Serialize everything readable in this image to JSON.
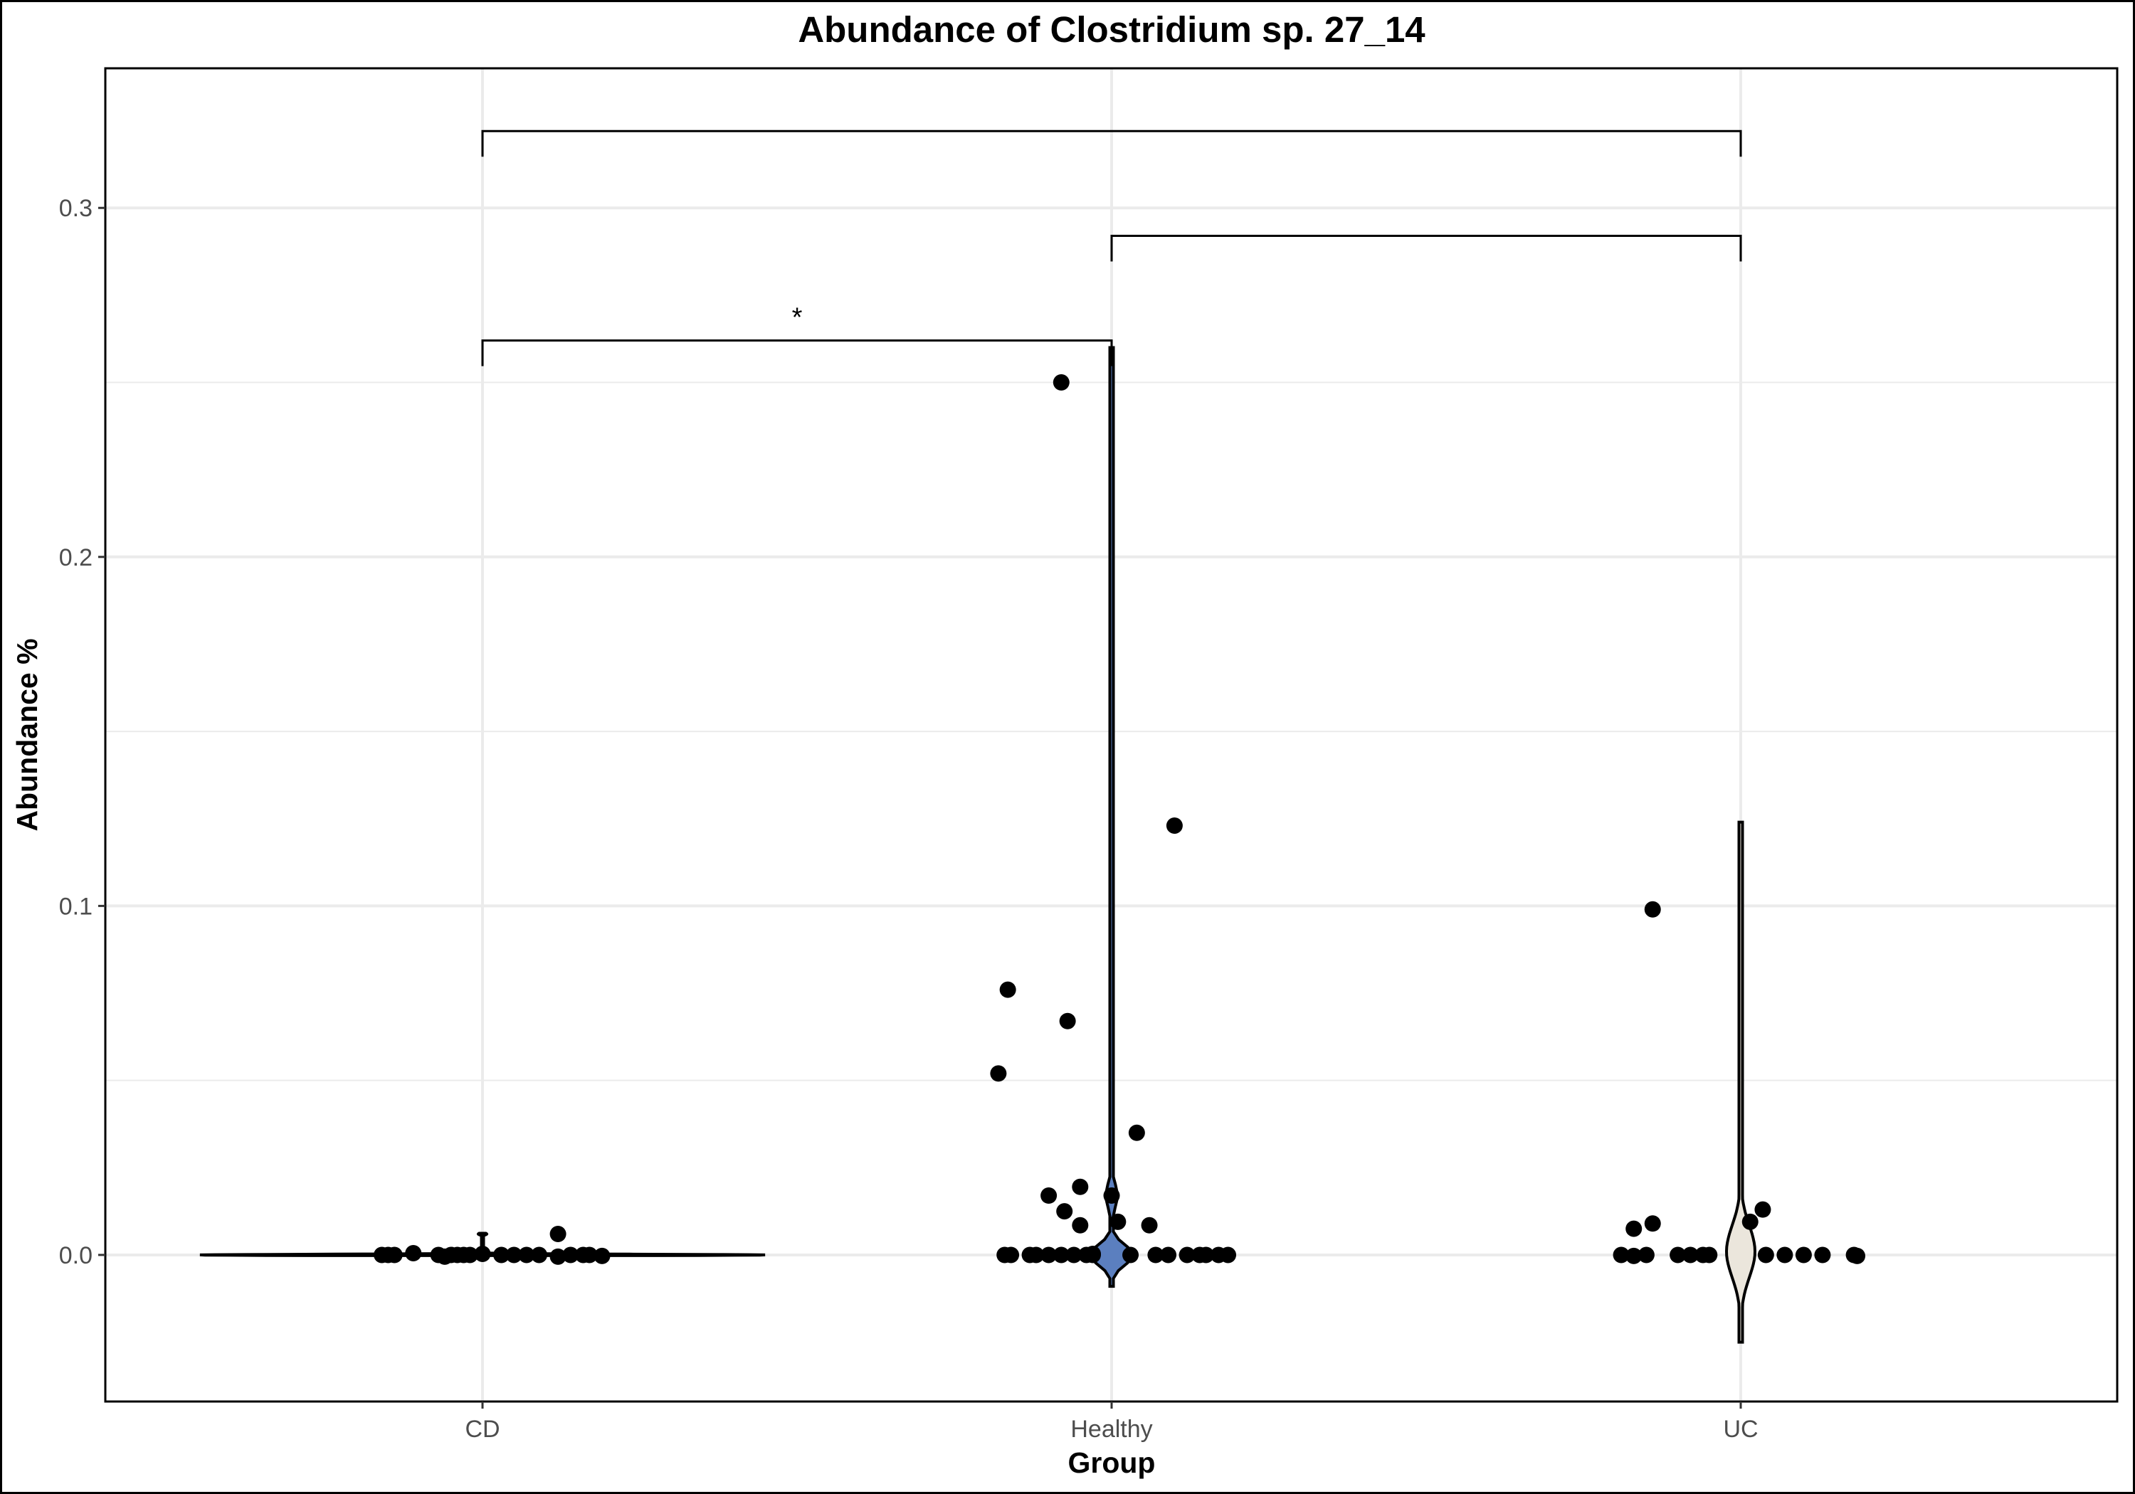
{
  "chart_data": {
    "type": "violin",
    "title": "Abundance of Clostridium sp. 27_14",
    "xlabel": "Group",
    "ylabel": "Abundance %",
    "categories": [
      "CD",
      "Healthy",
      "UC"
    ],
    "ylim": [
      -0.042,
      0.34
    ],
    "yticks": [
      0.0,
      0.1,
      0.2,
      0.3
    ],
    "ytick_labels": [
      "0.0",
      "0.1",
      "0.2",
      "0.3"
    ],
    "grid": true,
    "legend": "none",
    "colors": {
      "CD": "#ffffff",
      "Healthy": "#5b7fbf",
      "UC": "#ebe6dc"
    },
    "violin_range": {
      "CD": [
        -0.0002,
        0.0062
      ],
      "Healthy": [
        -0.009,
        0.26
      ],
      "UC": [
        -0.025,
        0.124
      ]
    },
    "points": [
      {
        "group": "CD",
        "x": -0.16,
        "y": 0.0
      },
      {
        "group": "CD",
        "x": -0.15,
        "y": 0.0
      },
      {
        "group": "CD",
        "x": -0.14,
        "y": 0.0
      },
      {
        "group": "CD",
        "x": -0.11,
        "y": 0.0005
      },
      {
        "group": "CD",
        "x": -0.07,
        "y": 0.0
      },
      {
        "group": "CD",
        "x": -0.06,
        "y": -0.0005
      },
      {
        "group": "CD",
        "x": -0.05,
        "y": 0.0
      },
      {
        "group": "CD",
        "x": -0.04,
        "y": 0.0
      },
      {
        "group": "CD",
        "x": -0.03,
        "y": 0.0
      },
      {
        "group": "CD",
        "x": -0.02,
        "y": 0.0
      },
      {
        "group": "CD",
        "x": 0.0,
        "y": 0.0003
      },
      {
        "group": "CD",
        "x": 0.03,
        "y": 0.0
      },
      {
        "group": "CD",
        "x": 0.05,
        "y": 0.0
      },
      {
        "group": "CD",
        "x": 0.07,
        "y": 0.0
      },
      {
        "group": "CD",
        "x": 0.09,
        "y": 0.0
      },
      {
        "group": "CD",
        "x": 0.12,
        "y": 0.006
      },
      {
        "group": "CD",
        "x": 0.12,
        "y": -0.0005
      },
      {
        "group": "CD",
        "x": 0.14,
        "y": 0.0
      },
      {
        "group": "CD",
        "x": 0.16,
        "y": 0.0
      },
      {
        "group": "CD",
        "x": 0.17,
        "y": 0.0
      },
      {
        "group": "CD",
        "x": 0.19,
        "y": -0.0003
      },
      {
        "group": "Healthy",
        "x": -0.18,
        "y": 0.052
      },
      {
        "group": "Healthy",
        "x": -0.165,
        "y": 0.076
      },
      {
        "group": "Healthy",
        "x": -0.08,
        "y": 0.25
      },
      {
        "group": "Healthy",
        "x": -0.07,
        "y": 0.067
      },
      {
        "group": "Healthy",
        "x": 0.1,
        "y": 0.123
      },
      {
        "group": "Healthy",
        "x": 0.04,
        "y": 0.035
      },
      {
        "group": "Healthy",
        "x": -0.1,
        "y": 0.017
      },
      {
        "group": "Healthy",
        "x": -0.075,
        "y": 0.0125
      },
      {
        "group": "Healthy",
        "x": -0.05,
        "y": 0.0195
      },
      {
        "group": "Healthy",
        "x": -0.05,
        "y": 0.0085
      },
      {
        "group": "Healthy",
        "x": 0.0,
        "y": 0.017
      },
      {
        "group": "Healthy",
        "x": 0.01,
        "y": 0.0095
      },
      {
        "group": "Healthy",
        "x": 0.06,
        "y": 0.0085
      },
      {
        "group": "Healthy",
        "x": -0.17,
        "y": 0.0
      },
      {
        "group": "Healthy",
        "x": -0.16,
        "y": 0.0
      },
      {
        "group": "Healthy",
        "x": -0.13,
        "y": 0.0
      },
      {
        "group": "Healthy",
        "x": -0.12,
        "y": 0.0
      },
      {
        "group": "Healthy",
        "x": -0.1,
        "y": 0.0
      },
      {
        "group": "Healthy",
        "x": -0.08,
        "y": 0.0
      },
      {
        "group": "Healthy",
        "x": -0.06,
        "y": 0.0
      },
      {
        "group": "Healthy",
        "x": -0.04,
        "y": 0.0
      },
      {
        "group": "Healthy",
        "x": -0.03,
        "y": 0.0
      },
      {
        "group": "Healthy",
        "x": -0.03,
        "y": 0.0003
      },
      {
        "group": "Healthy",
        "x": 0.03,
        "y": 0.0
      },
      {
        "group": "Healthy",
        "x": 0.07,
        "y": 0.0
      },
      {
        "group": "Healthy",
        "x": 0.09,
        "y": 0.0
      },
      {
        "group": "Healthy",
        "x": 0.12,
        "y": 0.0
      },
      {
        "group": "Healthy",
        "x": 0.14,
        "y": 0.0
      },
      {
        "group": "Healthy",
        "x": 0.15,
        "y": 0.0
      },
      {
        "group": "Healthy",
        "x": 0.17,
        "y": 0.0
      },
      {
        "group": "Healthy",
        "x": 0.185,
        "y": 0.0
      },
      {
        "group": "UC",
        "x": -0.14,
        "y": 0.099
      },
      {
        "group": "UC",
        "x": -0.17,
        "y": 0.0075
      },
      {
        "group": "UC",
        "x": -0.14,
        "y": 0.009
      },
      {
        "group": "UC",
        "x": 0.015,
        "y": 0.0095
      },
      {
        "group": "UC",
        "x": 0.035,
        "y": 0.013
      },
      {
        "group": "UC",
        "x": -0.19,
        "y": 0.0
      },
      {
        "group": "UC",
        "x": -0.17,
        "y": -0.0003
      },
      {
        "group": "UC",
        "x": -0.15,
        "y": 0.0
      },
      {
        "group": "UC",
        "x": -0.1,
        "y": 0.0
      },
      {
        "group": "UC",
        "x": -0.08,
        "y": 0.0
      },
      {
        "group": "UC",
        "x": -0.06,
        "y": 0.0
      },
      {
        "group": "UC",
        "x": -0.05,
        "y": 0.0
      },
      {
        "group": "UC",
        "x": 0.04,
        "y": 0.0
      },
      {
        "group": "UC",
        "x": 0.07,
        "y": 0.0
      },
      {
        "group": "UC",
        "x": 0.1,
        "y": 0.0
      },
      {
        "group": "UC",
        "x": 0.13,
        "y": 0.0
      },
      {
        "group": "UC",
        "x": 0.18,
        "y": 0.0
      },
      {
        "group": "UC",
        "x": 0.185,
        "y": -0.0003
      }
    ],
    "significance_brackets": [
      {
        "from": "CD",
        "to": "Healthy",
        "y": 0.262,
        "label": "*"
      },
      {
        "from": "Healthy",
        "to": "UC",
        "y": 0.292,
        "label": ""
      },
      {
        "from": "CD",
        "to": "UC",
        "y": 0.322,
        "label": ""
      }
    ]
  }
}
